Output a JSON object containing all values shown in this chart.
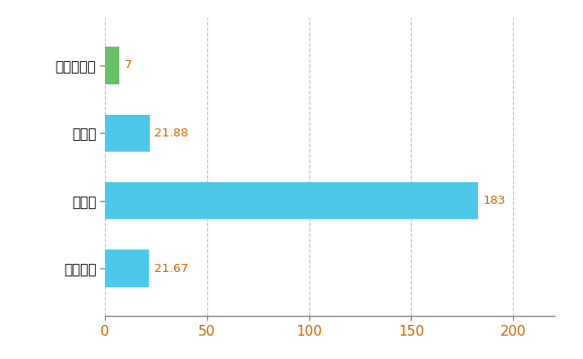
{
  "categories": [
    "東かがわ市",
    "県平均",
    "県最大",
    "全国平均"
  ],
  "values": [
    7,
    21.88,
    183,
    21.67
  ],
  "bar_colors": [
    "#6abf69",
    "#4dc8e8",
    "#4dc8e8",
    "#4dc8e8"
  ],
  "value_labels": [
    "7",
    "21.88",
    "183",
    "21.67"
  ],
  "xlim": [
    0,
    220
  ],
  "xticks": [
    0,
    50,
    100,
    150,
    200
  ],
  "bar_height": 0.55,
  "grid_color": "#c0c0c0",
  "background_color": "#ffffff",
  "label_fontsize": 11,
  "value_fontsize": 9.5,
  "figsize": [
    6.5,
    4.0
  ],
  "dpi": 100
}
